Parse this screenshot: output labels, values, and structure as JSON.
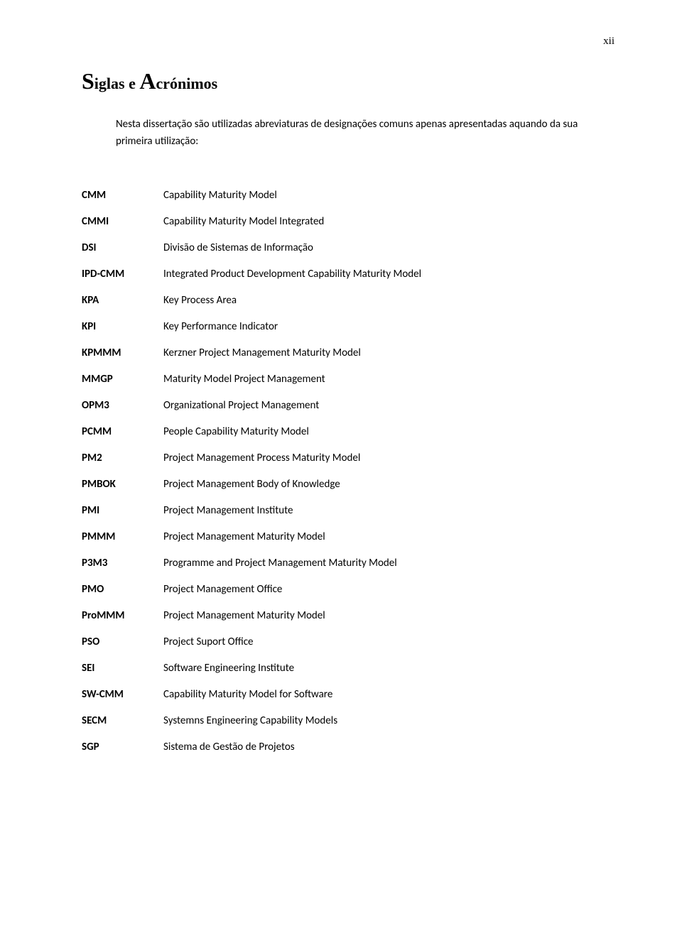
{
  "page": {
    "number": "xii"
  },
  "title": {
    "big1": "S",
    "small1": "iglas e ",
    "big2": "A",
    "small2": "crónimos"
  },
  "intro": "Nesta dissertação são utilizadas abreviaturas de designações comuns apenas apresentadas aquando da sua primeira utilização:",
  "acronyms": [
    {
      "key": "CMM",
      "value": "Capability Maturity Model"
    },
    {
      "key": "CMMI",
      "value": "Capability Maturity Model Integrated"
    },
    {
      "key": "DSI",
      "value": "Divisão de Sistemas de Informação"
    },
    {
      "key": "IPD-CMM",
      "value": "Integrated Product Development Capability Maturity Model"
    },
    {
      "key": "KPA",
      "value": "Key Process Area"
    },
    {
      "key": "KPI",
      "value": "Key Performance Indicator"
    },
    {
      "key": "KPMMM",
      "value": "Kerzner Project Management Maturity Model"
    },
    {
      "key": "MMGP",
      "value": "Maturity Model Project Management"
    },
    {
      "key": "OPM3",
      "value": "Organizational Project Management"
    },
    {
      "key": "PCMM",
      "value": "People Capability Maturity Model"
    },
    {
      "key": "PM2",
      "value": "Project Management Process Maturity Model"
    },
    {
      "key": "PMBOK",
      "value": "Project Management Body of Knowledge"
    },
    {
      "key": "PMI",
      "value": "Project Management Institute"
    },
    {
      "key": "PMMM",
      "value": "Project Management Maturity Model"
    },
    {
      "key": "P3M3",
      "value": "Programme and Project Management Maturity Model"
    },
    {
      "key": "PMO",
      "value": "Project  Management Office"
    },
    {
      "key": "ProMMM",
      "value": "Project Management Maturity Model"
    },
    {
      "key": "PSO",
      "value": "Project Suport Office"
    },
    {
      "key": "SEI",
      "value": "Software Engineering Institute"
    },
    {
      "key": "SW-CMM",
      "value": "Capability Maturity Model for Software"
    },
    {
      "key": "SECM",
      "value": "Systemns Engineering Capability Models"
    },
    {
      "key": "SGP",
      "value": "Sistema de Gestão de Projetos"
    }
  ]
}
